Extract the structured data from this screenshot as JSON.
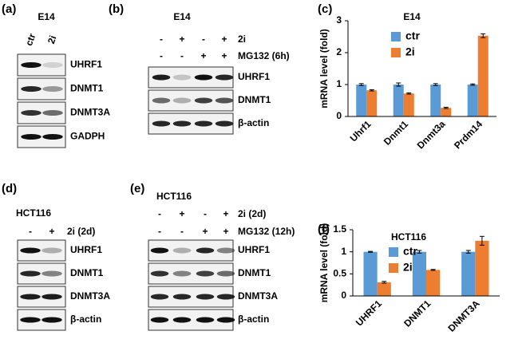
{
  "panels": {
    "a": {
      "label": "(a)",
      "cell": "E14",
      "lanes": [
        "ctr",
        "2i"
      ],
      "bands": [
        "UHRF1",
        "DNMT1",
        "DNMT3A",
        "GADPH"
      ]
    },
    "b": {
      "label": "(b)",
      "cell": "E14",
      "conditions": [
        {
          "name": "2i",
          "signs": [
            "-",
            "+",
            "-",
            "+"
          ]
        },
        {
          "name": "MG132 (6h)",
          "signs": [
            "-",
            "-",
            "+",
            "+"
          ]
        }
      ],
      "bands": [
        "UHRF1",
        "DNMT1",
        "β-actin"
      ]
    },
    "d": {
      "label": "(d)",
      "cell": "HCT116",
      "conditions": [
        {
          "name": "2i (2d)",
          "signs": [
            "-",
            "+"
          ]
        }
      ],
      "bands": [
        "UHRF1",
        "DNMT1",
        "DNMT3A",
        "β-actin"
      ]
    },
    "e": {
      "label": "(e)",
      "cell": "HCT116",
      "conditions": [
        {
          "name": "2i (2d)",
          "signs": [
            "-",
            "+",
            "-",
            "+"
          ]
        },
        {
          "name": "MG132 (12h)",
          "signs": [
            "-",
            "-",
            "+",
            "+"
          ]
        }
      ],
      "bands": [
        "UHRF1",
        "DNMT1",
        "DNMT3A",
        "β-actin"
      ]
    }
  },
  "chart_data": [
    {
      "type": "bar",
      "panel_label": "(c)",
      "title": "E14",
      "y_label": "mRNA level (fold)",
      "categories": [
        "Uhrf1",
        "Dnmt1",
        "Dnmt3a",
        "Prdm14"
      ],
      "series": [
        {
          "name": "ctr",
          "color": "#5b9bd5",
          "values": [
            1,
            1,
            1,
            1
          ],
          "errors": [
            0.03,
            0.05,
            0.03,
            0.02
          ]
        },
        {
          "name": "2i",
          "color": "#ed7d31",
          "values": [
            0.82,
            0.72,
            0.27,
            2.53
          ],
          "errors": [
            0.02,
            0.02,
            0.02,
            0.06
          ]
        }
      ],
      "ylim": [
        0,
        3
      ],
      "yticks": [
        0,
        1,
        2,
        3
      ]
    },
    {
      "type": "bar",
      "panel_label": "(f)",
      "title": "HCT116",
      "y_label": "mRNA level (fold)",
      "categories": [
        "UHRF1",
        "DNMT1",
        "DNMT3A"
      ],
      "series": [
        {
          "name": "ctr",
          "color": "#5b9bd5",
          "values": [
            1,
            1,
            1
          ],
          "errors": [
            0.01,
            0.03,
            0.03
          ]
        },
        {
          "name": "2i",
          "color": "#ed7d31",
          "values": [
            0.31,
            0.59,
            1.25
          ],
          "errors": [
            0.02,
            0.01,
            0.1
          ]
        }
      ],
      "ylim": [
        0,
        1.5
      ],
      "yticks": [
        0,
        0.5,
        1,
        1.5
      ]
    }
  ]
}
